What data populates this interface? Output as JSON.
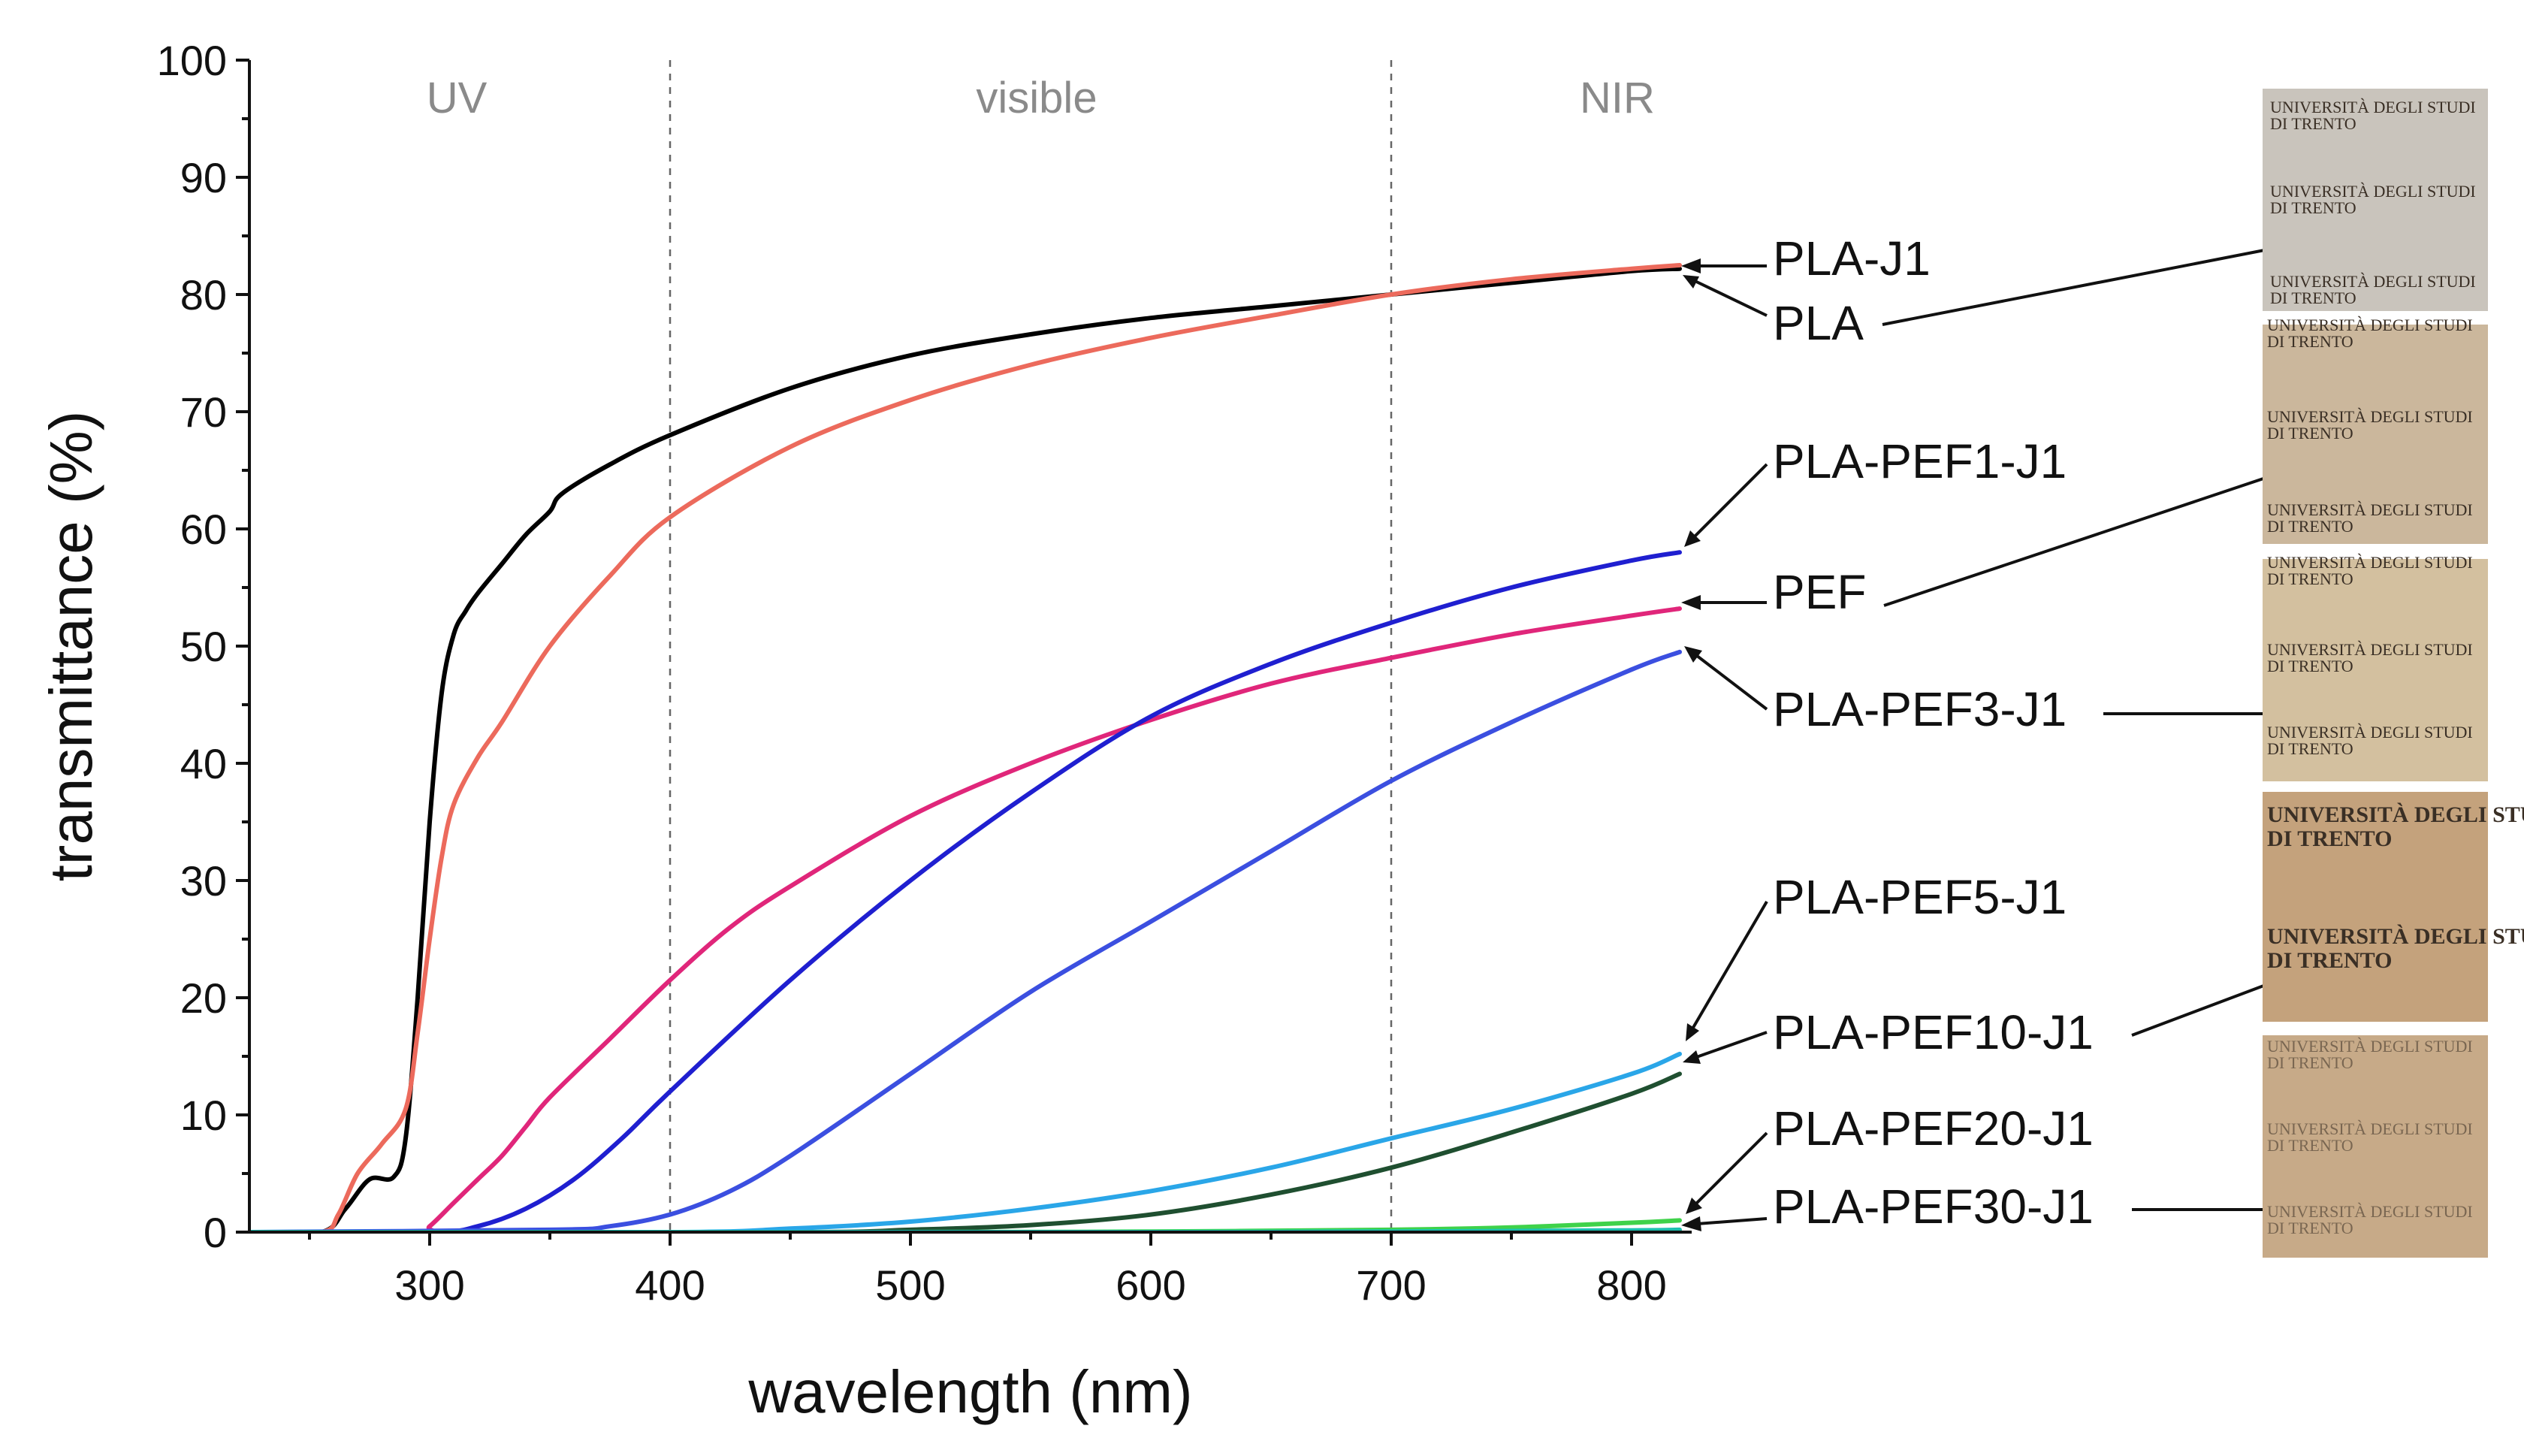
{
  "chart_data": {
    "type": "line",
    "title": "",
    "xlabel": "wavelength (nm)",
    "ylabel": "transmittance (%)",
    "xlim": [
      225,
      825
    ],
    "ylim": [
      0,
      100
    ],
    "x_ticks": [
      300,
      400,
      500,
      600,
      700,
      800
    ],
    "y_ticks": [
      0,
      10,
      20,
      30,
      40,
      50,
      60,
      70,
      80,
      90,
      100
    ],
    "grid": false,
    "regions": [
      {
        "label": "UV",
        "from": 225,
        "to": 400
      },
      {
        "label": "visible",
        "from": 400,
        "to": 700
      },
      {
        "label": "NIR",
        "from": 700,
        "to": 825
      }
    ],
    "region_boundaries": [
      400,
      700
    ],
    "series": [
      {
        "name": "PLA",
        "color": "#000000",
        "x": [
          225,
          255,
          265,
          275,
          285,
          290,
          295,
          300,
          305,
          310,
          315,
          320,
          330,
          340,
          350,
          355,
          375,
          400,
          450,
          500,
          550,
          600,
          650,
          700,
          750,
          800,
          820
        ],
        "y": [
          0,
          0,
          2,
          4.5,
          4.7,
          8,
          20,
          35,
          46,
          51,
          53,
          54.5,
          57,
          59.5,
          61.5,
          63,
          65.5,
          68,
          72,
          74.8,
          76.6,
          78,
          79,
          80,
          81,
          82,
          82.2
        ]
      },
      {
        "name": "PLA-J1",
        "color": "#ec6a5c",
        "x": [
          225,
          255,
          262,
          270,
          280,
          290,
          295,
          300,
          305,
          310,
          320,
          330,
          350,
          375,
          400,
          450,
          500,
          550,
          600,
          650,
          700,
          750,
          800,
          820
        ],
        "y": [
          0,
          0,
          1.5,
          5,
          7.5,
          10.5,
          17,
          25,
          32,
          36.5,
          40.5,
          43.5,
          50,
          56,
          61,
          67,
          71,
          74,
          76.3,
          78.2,
          80,
          81.3,
          82.2,
          82.5
        ]
      },
      {
        "name": "PEF",
        "color": "#e0267a",
        "x": [
          225,
          295,
          300,
          310,
          320,
          330,
          340,
          350,
          375,
          400,
          425,
          450,
          500,
          550,
          600,
          650,
          700,
          750,
          800,
          820
        ],
        "y": [
          0,
          0,
          0.5,
          2.5,
          4.5,
          6.5,
          9,
          11.5,
          16.5,
          21.5,
          26,
          29.5,
          35.5,
          40,
          43.7,
          46.8,
          49,
          51,
          52.6,
          53.2
        ]
      },
      {
        "name": "PLA-PEF1-J1",
        "color": "#1f1fd0",
        "x": [
          225,
          300,
          320,
          340,
          360,
          380,
          400,
          450,
          500,
          550,
          600,
          650,
          700,
          750,
          800,
          820
        ],
        "y": [
          0,
          0,
          0.5,
          2,
          4.5,
          8,
          12,
          21.5,
          30,
          37.5,
          44,
          48.5,
          52,
          55,
          57.3,
          58
        ]
      },
      {
        "name": "PLA-PEF3-J1",
        "color": "#3b4fe0",
        "x": [
          225,
          350,
          375,
          400,
          425,
          450,
          500,
          550,
          600,
          650,
          700,
          750,
          800,
          820
        ],
        "y": [
          0,
          0.2,
          0.5,
          1.5,
          3.5,
          6.5,
          13.5,
          20.5,
          26.5,
          32.5,
          38.5,
          43.5,
          48,
          49.5
        ]
      },
      {
        "name": "PLA-PEF5-J1",
        "color": "#2aa6e8",
        "x": [
          225,
          400,
          450,
          500,
          550,
          600,
          650,
          700,
          750,
          800,
          820
        ],
        "y": [
          0,
          0,
          0.3,
          0.9,
          2,
          3.5,
          5.5,
          8,
          10.5,
          13.5,
          15.2
        ]
      },
      {
        "name": "PLA-PEF10-J1",
        "color": "#1f4f30",
        "x": [
          225,
          450,
          500,
          550,
          600,
          650,
          700,
          750,
          800,
          820
        ],
        "y": [
          0,
          0,
          0.2,
          0.6,
          1.5,
          3.2,
          5.5,
          8.5,
          11.8,
          13.5
        ]
      },
      {
        "name": "PLA-PEF20-J1",
        "color": "#3fd24a",
        "x": [
          225,
          500,
          600,
          700,
          750,
          800,
          820
        ],
        "y": [
          0,
          0,
          0.05,
          0.2,
          0.4,
          0.8,
          1.0
        ]
      },
      {
        "name": "PLA-PEF30-J1",
        "color": "#1bbfae",
        "x": [
          225,
          500,
          600,
          700,
          800,
          820
        ],
        "y": [
          0,
          0,
          0,
          0.05,
          0.15,
          0.2
        ]
      }
    ],
    "annotation_labels": [
      "PLA-J1",
      "PLA",
      "PLA-PEF1-J1",
      "PEF",
      "PLA-PEF3-J1",
      "PLA-PEF5-J1",
      "PLA-PEF10-J1",
      "PLA-PEF20-J1",
      "PLA-PEF30-J1"
    ],
    "sample_photos": {
      "caption_line1": "UNIVERSITÀ DEGLI STUDI",
      "caption_line2": "DI TRENTO",
      "tints": [
        "#c9c4bc",
        "#cbb79c",
        "#d3c09f",
        "#c4a27c",
        "#c7aa88"
      ]
    }
  }
}
